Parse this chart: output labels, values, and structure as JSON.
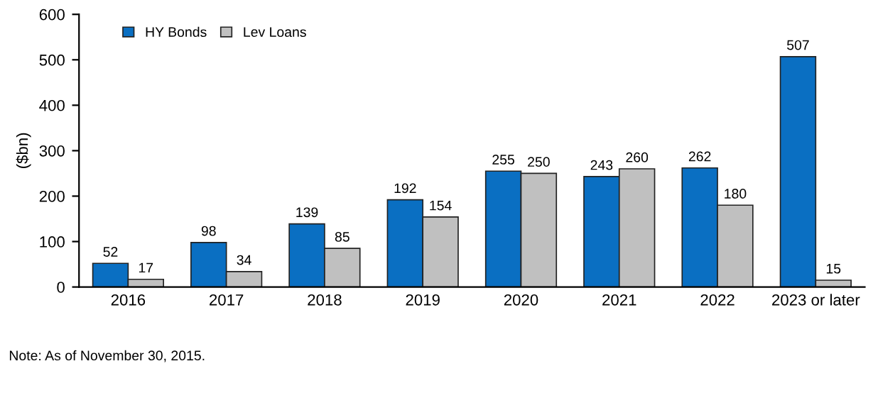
{
  "chart_data": {
    "type": "bar",
    "ylabel": "($bn)",
    "categories": [
      "2016",
      "2017",
      "2018",
      "2019",
      "2020",
      "2021",
      "2022",
      "2023 or later"
    ],
    "series": [
      {
        "name": "HY Bonds",
        "color": "#0a6fc2",
        "values": [
          52,
          98,
          139,
          192,
          255,
          243,
          262,
          507
        ]
      },
      {
        "name": "Lev Loans",
        "color": "#c0c0c0",
        "values": [
          17,
          34,
          85,
          154,
          250,
          260,
          180,
          15
        ]
      }
    ],
    "ylim": [
      0,
      600
    ],
    "yticks": [
      0,
      100,
      200,
      300,
      400,
      500,
      600
    ],
    "grid": false,
    "legend": "top left",
    "data_labels": true,
    "annotations": [
      "Note: As of November 30, 2015."
    ]
  }
}
